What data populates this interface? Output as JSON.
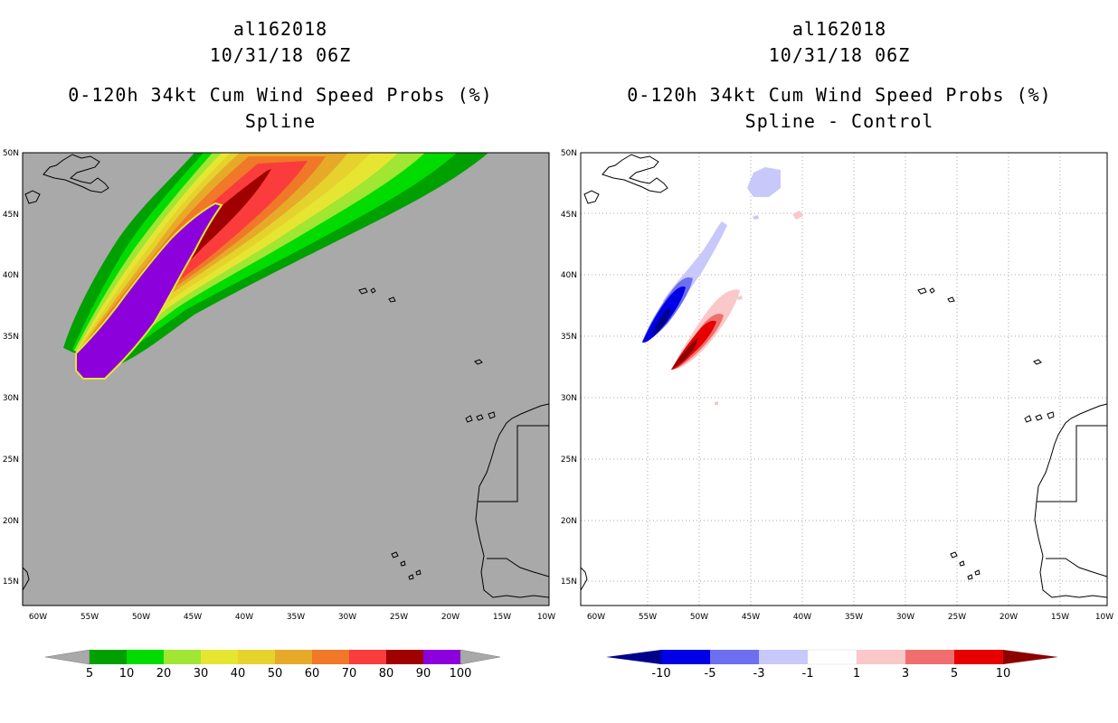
{
  "left_panel": {
    "storm_id": "al162018",
    "datetime": "10/31/18 06Z",
    "title": "0-120h 34kt Cum Wind Speed Probs (%)",
    "subtitle": "Spline",
    "background_color": "#a9a9a9"
  },
  "right_panel": {
    "storm_id": "al162018",
    "datetime": "10/31/18 06Z",
    "title": "0-120h 34kt Cum Wind Speed Probs (%)",
    "subtitle": "Spline - Control",
    "background_color": "#ffffff"
  },
  "axes": {
    "lat_labels": [
      "50N",
      "45N",
      "40N",
      "35N",
      "30N",
      "25N",
      "20N",
      "15N"
    ],
    "lon_labels": [
      "60W",
      "55W",
      "50W",
      "45W",
      "40W",
      "35W",
      "30W",
      "25W",
      "20W",
      "15W",
      "10W"
    ],
    "lat_range": [
      13,
      50
    ],
    "lon_range": [
      -61,
      -10
    ]
  },
  "colorbar_left": {
    "labels": [
      "5",
      "10",
      "20",
      "30",
      "40",
      "50",
      "60",
      "70",
      "80",
      "90",
      "100"
    ],
    "colors": [
      "#a9a9a9",
      "#00a000",
      "#00dc00",
      "#a0e632",
      "#e6e632",
      "#e6d22d",
      "#e6aa28",
      "#f07828",
      "#fa3c3c",
      "#a00000",
      "#8c00dc",
      "#a9a9a9"
    ]
  },
  "colorbar_right": {
    "labels": [
      "-10",
      "-5",
      "-3",
      "-1",
      "1",
      "3",
      "5",
      "10"
    ],
    "colors": [
      "#00008c",
      "#0000e6",
      "#6e6ef0",
      "#c8c8fa",
      "#ffffff",
      "#fac8c8",
      "#f06e6e",
      "#e60000",
      "#8c0000"
    ]
  }
}
